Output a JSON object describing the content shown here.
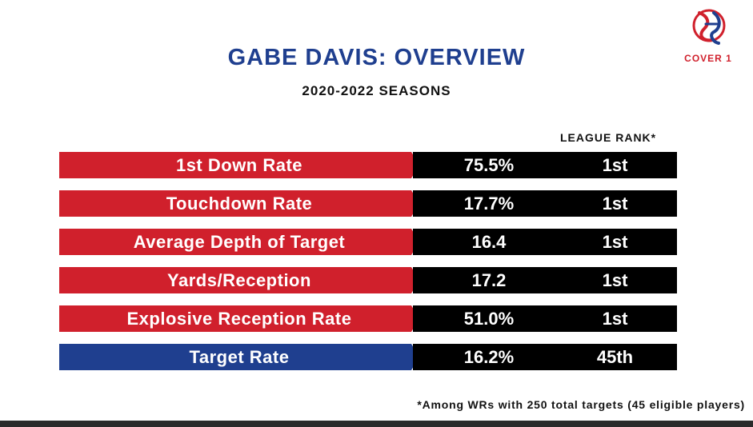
{
  "header": {
    "title": "GABE DAVIS: OVERVIEW",
    "subtitle": "2020-2022 SEASONS"
  },
  "logo": {
    "text": "COVER 1",
    "icon": "cover1-logo-icon"
  },
  "colors": {
    "red": "#d0202c",
    "blue": "#1f3f8f",
    "black": "#000000"
  },
  "table": {
    "rank_header": "LEAGUE RANK*",
    "rows": [
      {
        "label": "1st Down Rate",
        "value": "75.5%",
        "rank": "1st"
      },
      {
        "label": "Touchdown Rate",
        "value": "17.7%",
        "rank": "1st"
      },
      {
        "label": "Average Depth of Target",
        "value": "16.4",
        "rank": "1st"
      },
      {
        "label": "Yards/Reception",
        "value": "17.2",
        "rank": "1st"
      },
      {
        "label": "Explosive Reception Rate",
        "value": "51.0%",
        "rank": "1st"
      },
      {
        "label": "Target Rate",
        "value": "16.2%",
        "rank": "45th"
      }
    ]
  },
  "footnote": "*Among WRs with 250 total targets (45 eligible players)"
}
